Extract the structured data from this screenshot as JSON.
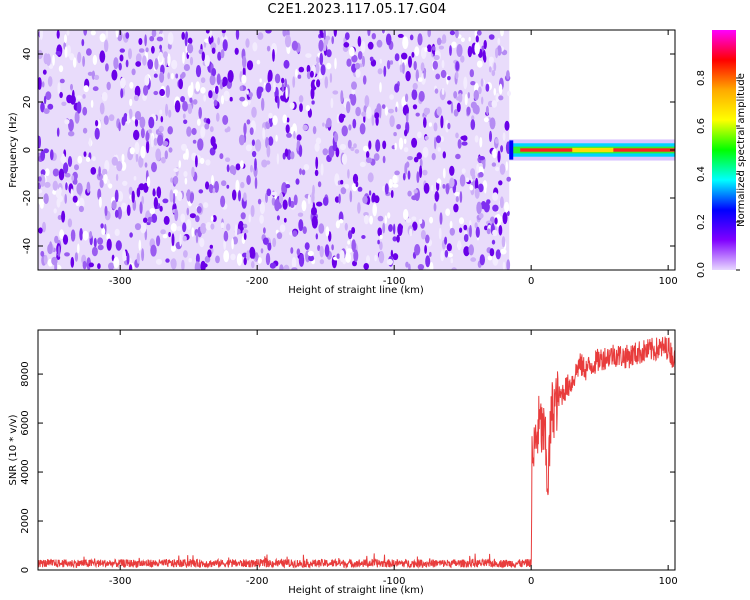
{
  "title": "C2E1.2023.117.05.17.G04",
  "colors": {
    "snr_line": "#e83c3c",
    "spectrogram_low": "#e9dcfb",
    "spectrogram_high": "#6a00e8",
    "colorbar_stops": [
      "#ff00ff",
      "#ff0000",
      "#ffaa00",
      "#ffff00",
      "#00ff00",
      "#00ffff",
      "#0000ff",
      "#8000ff",
      "#e8d8ff"
    ]
  },
  "chart_data": [
    {
      "type": "heatmap",
      "title": "",
      "xlabel": "Height of straight line (km)",
      "ylabel": "Frequency (Hz)",
      "xlim": [
        -360,
        105
      ],
      "ylim": [
        -50,
        50
      ],
      "x_ticks": [
        -300,
        -200,
        -100,
        0,
        100
      ],
      "y_ticks": [
        -40,
        -20,
        0,
        20,
        40
      ],
      "colorbar": {
        "label": "Normalized spectral amplitude",
        "range": [
          0.0,
          1.0
        ],
        "ticks": [
          "0.0",
          "0.2",
          "0.4",
          "0.6",
          "0.8"
        ]
      },
      "noise_region_x": [
        -360,
        -16
      ],
      "signal_region_x": [
        -16,
        105
      ],
      "signal_center_freq_hz": 0,
      "signal_halfwidth_hz": 2
    },
    {
      "type": "line",
      "title": "",
      "xlabel": "Height of straight line (km)",
      "ylabel": "SNR (10 * v/v)",
      "xlim": [
        -360,
        105
      ],
      "ylim": [
        0,
        9800
      ],
      "x_ticks": [
        -300,
        -200,
        -100,
        0,
        100
      ],
      "y_ticks": [
        0,
        2000,
        4000,
        6000,
        8000
      ],
      "series": [
        {
          "x": [
            -360,
            -300,
            -200,
            -100,
            -5,
            0,
            0.5,
            3,
            6,
            10,
            12,
            15,
            20,
            25,
            30,
            35,
            40,
            50,
            60,
            70,
            80,
            90,
            100,
            105
          ],
          "values": [
            300,
            300,
            300,
            300,
            300,
            320,
            4200,
            5200,
            6000,
            5400,
            3500,
            6500,
            7000,
            7400,
            7700,
            8400,
            8200,
            8600,
            8800,
            8700,
            8900,
            9000,
            9100,
            8500
          ]
        }
      ]
    }
  ]
}
